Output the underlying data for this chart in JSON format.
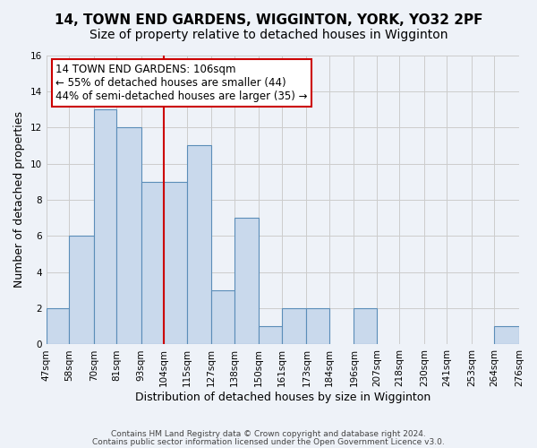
{
  "title": "14, TOWN END GARDENS, WIGGINTON, YORK, YO32 2PF",
  "subtitle": "Size of property relative to detached houses in Wigginton",
  "xlabel": "Distribution of detached houses by size in Wigginton",
  "ylabel": "Number of detached properties",
  "bin_edges": [
    47,
    58,
    70,
    81,
    93,
    104,
    115,
    127,
    138,
    150,
    161,
    173,
    184,
    196,
    207,
    218,
    230,
    241,
    253,
    264,
    276
  ],
  "bin_labels": [
    "47sqm",
    "58sqm",
    "70sqm",
    "81sqm",
    "93sqm",
    "104sqm",
    "115sqm",
    "127sqm",
    "138sqm",
    "150sqm",
    "161sqm",
    "173sqm",
    "184sqm",
    "196sqm",
    "207sqm",
    "218sqm",
    "230sqm",
    "241sqm",
    "253sqm",
    "264sqm",
    "276sqm"
  ],
  "counts": [
    2,
    6,
    13,
    12,
    9,
    9,
    11,
    3,
    7,
    1,
    2,
    2,
    0,
    2,
    0,
    0,
    0,
    0,
    0,
    1
  ],
  "bar_color": "#c9d9ec",
  "bar_edge_color": "#5b8db8",
  "vline_x": 104,
  "vline_color": "#cc0000",
  "annotation_box_text": "14 TOWN END GARDENS: 106sqm\n← 55% of detached houses are smaller (44)\n44% of semi-detached houses are larger (35) →",
  "annotation_box_color": "#ffffff",
  "annotation_box_edge_color": "#cc0000",
  "ylim": [
    0,
    16
  ],
  "yticks": [
    0,
    2,
    4,
    6,
    8,
    10,
    12,
    14,
    16
  ],
  "grid_color": "#cccccc",
  "bg_color": "#eef2f8",
  "footer_line1": "Contains HM Land Registry data © Crown copyright and database right 2024.",
  "footer_line2": "Contains public sector information licensed under the Open Government Licence v3.0.",
  "title_fontsize": 11,
  "subtitle_fontsize": 10,
  "label_fontsize": 9,
  "tick_fontsize": 7.5,
  "annotation_fontsize": 8.5
}
